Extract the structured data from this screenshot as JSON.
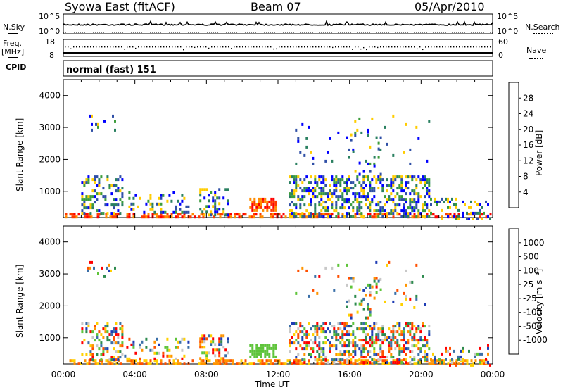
{
  "header": {
    "station": "Syowa East (fitACF)",
    "beam": "Beam 07",
    "date": "05/Apr/2010"
  },
  "noise_panel": {
    "left_label": "N.Sky",
    "left_ticks": [
      "10^5",
      "10^0"
    ],
    "right_ticks": [
      "10^5",
      "10^0"
    ],
    "right_label": "N.Search"
  },
  "freq_panel": {
    "left_label_line1": "Freq.",
    "left_label_line2": "[MHz]",
    "left_ticks": [
      "18",
      "8"
    ],
    "right_ticks": [
      "60",
      "0"
    ],
    "right_label": "Nave",
    "cpid_label": "CPID",
    "cpid_value": "normal (fast) 151"
  },
  "chart_data": [
    {
      "type": "heatmap",
      "name": "Power",
      "ylabel": "Slant Range [km]",
      "xlabel": "Time UT",
      "y_ticks": [
        "4000",
        "3000",
        "2000",
        "1000"
      ],
      "x_ticks": [
        "00:00",
        "04:00",
        "08:00",
        "12:00",
        "16:00",
        "20:00",
        "00:00"
      ],
      "ylim": [
        180,
        4500
      ],
      "xlim_hours": [
        0,
        24
      ],
      "colorbar": {
        "label": "Power [dB]",
        "ticks": [
          "28",
          "24",
          "20",
          "16",
          "12",
          "8",
          "4"
        ],
        "colors": [
          "#ff0000",
          "#ff3a00",
          "#ff8c00",
          "#ffcc00",
          "#3c9c3c",
          "#2a8060",
          "#2f4fa6",
          "#0000ff"
        ]
      }
    },
    {
      "type": "heatmap",
      "name": "Velocity",
      "ylabel": "Slant Range [km]",
      "xlabel": "Time UT",
      "y_ticks": [
        "4000",
        "3000",
        "2000",
        "1000"
      ],
      "x_ticks": [
        "00:00",
        "04:00",
        "08:00",
        "12:00",
        "16:00",
        "20:00",
        "00:00"
      ],
      "ylim": [
        180,
        4500
      ],
      "xlim_hours": [
        0,
        24
      ],
      "colorbar": {
        "label": "Velocity [m s⁻¹]",
        "ticks": [
          "1000",
          "500",
          "100",
          "25",
          "-25",
          "-100",
          "-500",
          "-1000"
        ],
        "colors": [
          "#1e3cb4",
          "#3a6fa8",
          "#2d8a4e",
          "#5ec43a",
          "#c8c8c8",
          "#ffd000",
          "#ff9400",
          "#ff5000",
          "#ff0000"
        ]
      }
    }
  ],
  "x_axis_title": "Time UT"
}
